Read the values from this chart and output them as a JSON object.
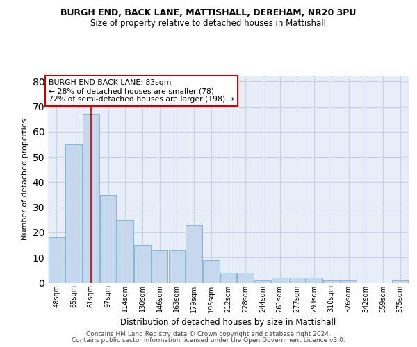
{
  "title": "BURGH END, BACK LANE, MATTISHALL, DEREHAM, NR20 3PU",
  "subtitle": "Size of property relative to detached houses in Mattishall",
  "xlabel": "Distribution of detached houses by size in Mattishall",
  "ylabel": "Number of detached properties",
  "categories": [
    "48sqm",
    "65sqm",
    "81sqm",
    "97sqm",
    "114sqm",
    "130sqm",
    "146sqm",
    "163sqm",
    "179sqm",
    "195sqm",
    "212sqm",
    "228sqm",
    "244sqm",
    "261sqm",
    "277sqm",
    "293sqm",
    "310sqm",
    "326sqm",
    "342sqm",
    "359sqm",
    "375sqm"
  ],
  "values": [
    18,
    55,
    67,
    35,
    25,
    15,
    13,
    13,
    23,
    9,
    4,
    4,
    1,
    2,
    2,
    2,
    1,
    1,
    0,
    0,
    1
  ],
  "bar_color": "#c5d8ee",
  "bar_edge_color": "#7bafd4",
  "grid_color": "#c8d4e8",
  "background_color": "#e8eef8",
  "property_line_x": 2,
  "annotation_line1": "BURGH END BACK LANE: 83sqm",
  "annotation_line2": "← 28% of detached houses are smaller (78)",
  "annotation_line3": "72% of semi-detached houses are larger (198) →",
  "annotation_box_color": "#ffffff",
  "annotation_box_edge": "#cc0000",
  "property_line_color": "#cc0000",
  "ylim": [
    0,
    82
  ],
  "yticks": [
    0,
    10,
    20,
    30,
    40,
    50,
    60,
    70,
    80
  ],
  "footer_line1": "Contains HM Land Registry data © Crown copyright and database right 2024.",
  "footer_line2": "Contains public sector information licensed under the Open Government Licence v3.0."
}
